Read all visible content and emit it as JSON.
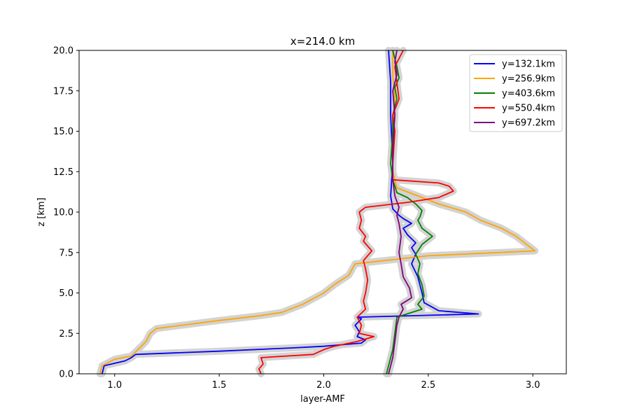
{
  "chart_data": {
    "type": "line",
    "title": "x=214.0 km",
    "xlabel": "layer-AMF",
    "ylabel": "z [km]",
    "xlim": [
      0.83,
      3.16
    ],
    "ylim": [
      0,
      20
    ],
    "xticks": [
      1.0,
      1.5,
      2.0,
      2.5,
      3.0
    ],
    "xtick_labels": [
      "1.0",
      "1.5",
      "2.0",
      "2.5",
      "3.0"
    ],
    "yticks": [
      0,
      2.5,
      5,
      7.5,
      10,
      12.5,
      15,
      17.5,
      20
    ],
    "ytick_labels": [
      "0.0",
      "2.5",
      "5.0",
      "7.5",
      "10.0",
      "12.5",
      "15.0",
      "17.5",
      "20.0"
    ],
    "grid": false,
    "legend_position": "top-right",
    "uncertainty_band_color": "#d3d3d3",
    "series": [
      {
        "name": "y=132.1km",
        "color": "#0000ff",
        "x": [
          0.94,
          0.95,
          1.05,
          1.08,
          1.1,
          1.5,
          1.85,
          2.0,
          2.18,
          2.2,
          2.16,
          2.17,
          2.15,
          2.18,
          2.16,
          2.74,
          2.55,
          2.48,
          2.47,
          2.45,
          2.42,
          2.44,
          2.42,
          2.44,
          2.4,
          2.38,
          2.42,
          2.38,
          2.36,
          2.33,
          2.32,
          2.33,
          2.32,
          2.32,
          2.31
        ],
        "y": [
          0,
          0.5,
          0.8,
          1.0,
          1.2,
          1.4,
          1.6,
          1.7,
          1.9,
          2.1,
          2.3,
          2.6,
          3.0,
          3.4,
          3.5,
          3.7,
          3.9,
          4.4,
          5.0,
          6.0,
          6.8,
          7.4,
          7.8,
          8.1,
          8.6,
          9.0,
          9.3,
          9.6,
          9.8,
          10.2,
          11.0,
          13.0,
          16.0,
          18.0,
          20.0
        ]
      },
      {
        "name": "y=256.9km",
        "color": "#ffa500",
        "x": [
          0.93,
          0.94,
          1.0,
          1.08,
          1.12,
          1.15,
          1.17,
          1.2,
          1.5,
          1.7,
          1.8,
          1.9,
          2.0,
          2.05,
          2.12,
          2.15,
          2.5,
          3.01,
          2.97,
          2.92,
          2.85,
          2.75,
          2.68,
          2.55,
          2.45,
          2.35,
          2.33,
          2.33,
          2.34,
          2.33,
          2.33
        ],
        "y": [
          0,
          0.5,
          0.9,
          1.1,
          1.6,
          2.0,
          2.5,
          2.8,
          3.3,
          3.6,
          3.8,
          4.3,
          5.0,
          5.5,
          6.1,
          6.8,
          7.3,
          7.6,
          8.0,
          8.5,
          9.0,
          9.5,
          10.0,
          10.5,
          11.0,
          11.5,
          12.5,
          15.0,
          17.0,
          18.5,
          20.0
        ]
      },
      {
        "name": "y=403.6km",
        "color": "#008000",
        "x": [
          2.3,
          2.31,
          2.32,
          2.33,
          2.34,
          2.35,
          2.47,
          2.45,
          2.48,
          2.47,
          2.45,
          2.46,
          2.44,
          2.47,
          2.52,
          2.47,
          2.45,
          2.46,
          2.47,
          2.44,
          2.4,
          2.35,
          2.34,
          2.33,
          2.32,
          2.33,
          2.33,
          2.35,
          2.34,
          2.36,
          2.35,
          2.33
        ],
        "y": [
          0,
          0.5,
          1.0,
          1.5,
          2.5,
          3.5,
          4.0,
          4.3,
          4.8,
          5.5,
          6.2,
          6.8,
          7.4,
          8.0,
          8.5,
          9.0,
          9.5,
          9.7,
          10.1,
          10.5,
          10.9,
          11.2,
          11.6,
          12.0,
          13.0,
          15.0,
          16.0,
          17.0,
          17.7,
          18.3,
          19.0,
          20.0
        ]
      },
      {
        "name": "y=550.4km",
        "color": "#ff0000",
        "x": [
          1.7,
          1.69,
          1.71,
          1.7,
          1.95,
          2.0,
          2.05,
          2.16,
          2.24,
          2.17,
          2.18,
          2.16,
          2.2,
          2.19,
          2.2,
          2.21,
          2.2,
          2.19,
          2.23,
          2.19,
          2.2,
          2.17,
          2.18,
          2.17,
          2.2,
          2.4,
          2.55,
          2.62,
          2.6,
          2.55,
          2.33,
          2.33,
          2.34,
          2.33,
          2.36,
          2.35,
          2.34,
          2.38
        ],
        "y": [
          0,
          0.3,
          0.6,
          1.0,
          1.2,
          1.5,
          1.7,
          2.0,
          2.3,
          2.5,
          3.0,
          3.5,
          4.0,
          4.5,
          5.0,
          5.8,
          6.5,
          7.0,
          7.6,
          8.2,
          8.5,
          9.0,
          9.5,
          10.0,
          10.3,
          10.6,
          10.9,
          11.3,
          11.6,
          11.8,
          12.0,
          13.0,
          15.0,
          16.0,
          17.0,
          18.0,
          19.0,
          20.0
        ]
      },
      {
        "name": "y=697.2km",
        "color": "#800080",
        "x": [
          2.31,
          2.32,
          2.33,
          2.34,
          2.35,
          2.36,
          2.38,
          2.37,
          2.42,
          2.41,
          2.38,
          2.37,
          2.36,
          2.37,
          2.36,
          2.35,
          2.36,
          2.34,
          2.33,
          2.33,
          2.34,
          2.33,
          2.35,
          2.34,
          2.35
        ],
        "y": [
          0,
          0.5,
          1.0,
          2.0,
          3.0,
          3.5,
          4.0,
          4.3,
          4.7,
          5.3,
          6.0,
          6.8,
          7.5,
          8.5,
          9.3,
          9.8,
          10.3,
          11.0,
          12.0,
          14.0,
          16.0,
          17.5,
          18.5,
          19.3,
          20.0
        ]
      }
    ]
  }
}
